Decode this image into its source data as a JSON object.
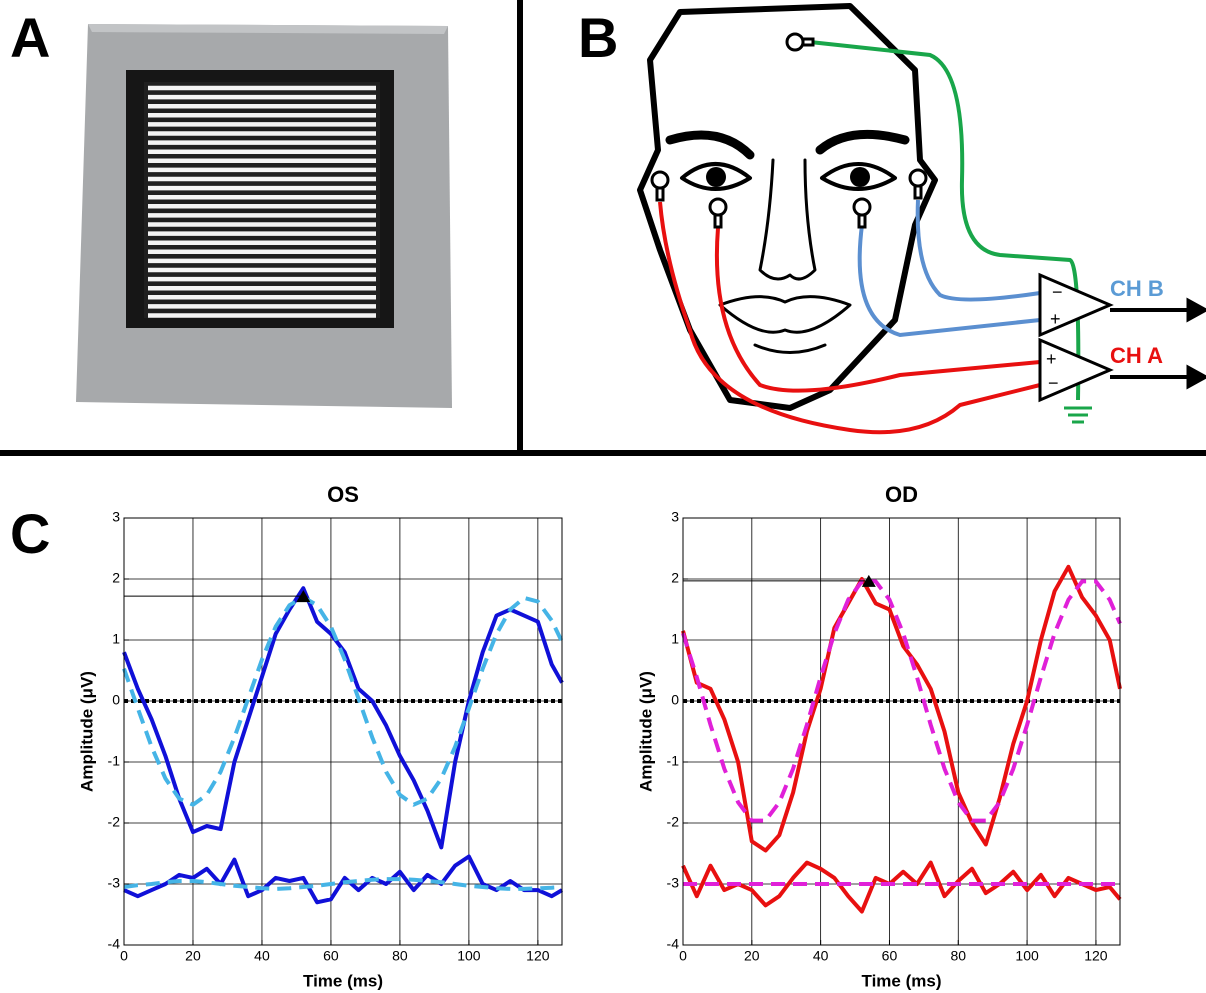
{
  "panels": {
    "a": "A",
    "b": "B",
    "c": "C"
  },
  "diagram": {
    "channel_b": "CH B",
    "channel_a": "CH A"
  },
  "chart_data": [
    {
      "type": "line",
      "title": "OS",
      "xlabel": "Time (ms)",
      "ylabel": "Amplitude (μV)",
      "x": [
        0,
        4,
        8,
        12,
        16,
        20,
        24,
        28,
        32,
        36,
        40,
        44,
        48,
        52,
        56,
        60,
        64,
        68,
        72,
        76,
        80,
        84,
        88,
        92,
        96,
        100,
        104,
        108,
        112,
        116,
        120,
        124,
        127
      ],
      "series": [
        {
          "color": "#000000",
          "dash": "dotted",
          "values": [
            0,
            0,
            0,
            0,
            0,
            0,
            0,
            0,
            0,
            0,
            0,
            0,
            0,
            0,
            0,
            0,
            0,
            0,
            0,
            0,
            0,
            0,
            0,
            0,
            0,
            0,
            0,
            0,
            0,
            0,
            0,
            0,
            0
          ]
        },
        {
          "color": "#1010d8",
          "dash": "solid",
          "values": [
            0.8,
            0.2,
            -0.3,
            -0.9,
            -1.6,
            -2.15,
            -2.05,
            -2.1,
            -1.0,
            -0.3,
            0.4,
            1.1,
            1.5,
            1.85,
            1.3,
            1.1,
            0.8,
            0.2,
            0,
            -0.4,
            -0.9,
            -1.3,
            -1.8,
            -2.4,
            -1.0,
            0.0,
            0.8,
            1.4,
            1.5,
            1.4,
            1.3,
            0.6,
            0.3
          ]
        },
        {
          "color": "#45b4e6",
          "dash": "dashed",
          "values": [
            0.53,
            -0.12,
            -0.75,
            -1.27,
            -1.6,
            -1.7,
            -1.54,
            -1.16,
            -0.6,
            0.04,
            0.68,
            1.22,
            1.57,
            1.7,
            1.57,
            1.22,
            0.68,
            0.04,
            -0.6,
            -1.16,
            -1.54,
            -1.7,
            -1.6,
            -1.27,
            -0.75,
            -0.12,
            0.53,
            1.1,
            1.5,
            1.69,
            1.63,
            1.32,
            0.97
          ]
        },
        {
          "color": "#1010d8",
          "dash": "solid",
          "values": [
            -3.1,
            -3.2,
            -3.1,
            -3.0,
            -2.85,
            -2.9,
            -2.75,
            -3.0,
            -2.6,
            -3.2,
            -3.1,
            -2.9,
            -2.95,
            -2.9,
            -3.3,
            -3.25,
            -2.9,
            -3.1,
            -2.9,
            -3.0,
            -2.8,
            -3.1,
            -2.85,
            -3.0,
            -2.7,
            -2.55,
            -3.0,
            -3.1,
            -2.95,
            -3.1,
            -3.1,
            -3.2,
            -3.1
          ]
        },
        {
          "color": "#45b4e6",
          "dash": "dashed",
          "values": [
            -3.05,
            -3.02,
            -3.0,
            -2.97,
            -2.95,
            -2.95,
            -2.97,
            -3.0,
            -3.03,
            -3.05,
            -3.07,
            -3.08,
            -3.07,
            -3.05,
            -3.03,
            -3.0,
            -2.97,
            -2.95,
            -2.93,
            -2.92,
            -2.92,
            -2.93,
            -2.95,
            -2.97,
            -3.0,
            -3.03,
            -3.05,
            -3.07,
            -3.08,
            -3.08,
            -3.07,
            -3.06,
            -3.05
          ]
        }
      ],
      "peak": {
        "x": 52,
        "y": 1.72
      },
      "xlim": [
        0,
        127
      ],
      "ylim": [
        -4,
        3
      ],
      "xticks": [
        0,
        20,
        40,
        60,
        80,
        100,
        120
      ],
      "yticks": [
        -4,
        -3,
        -2,
        -1,
        0,
        1,
        2,
        3
      ],
      "grid": true
    },
    {
      "type": "line",
      "title": "OD",
      "xlabel": "Time (ms)",
      "ylabel": "Amplitude (μV)",
      "x": [
        0,
        4,
        8,
        12,
        16,
        20,
        24,
        28,
        32,
        36,
        40,
        44,
        48,
        52,
        56,
        60,
        64,
        68,
        72,
        76,
        80,
        84,
        88,
        92,
        96,
        100,
        104,
        108,
        112,
        116,
        120,
        124,
        127
      ],
      "series": [
        {
          "color": "#000000",
          "dash": "dotted",
          "values": [
            0,
            0,
            0,
            0,
            0,
            0,
            0,
            0,
            0,
            0,
            0,
            0,
            0,
            0,
            0,
            0,
            0,
            0,
            0,
            0,
            0,
            0,
            0,
            0,
            0,
            0,
            0,
            0,
            0,
            0,
            0,
            0,
            0
          ]
        },
        {
          "color": "#e81010",
          "dash": "solid",
          "values": [
            1.15,
            0.3,
            0.2,
            -0.3,
            -1.0,
            -2.3,
            -2.45,
            -2.2,
            -1.5,
            -0.5,
            0.2,
            1.2,
            1.6,
            2.0,
            1.6,
            1.5,
            0.9,
            0.6,
            0.2,
            -0.5,
            -1.5,
            -2.0,
            -2.35,
            -1.6,
            -0.7,
            0.0,
            1.0,
            1.8,
            2.2,
            1.7,
            1.4,
            1.0,
            0.2
          ]
        },
        {
          "color": "#e020d8",
          "dash": "dashed",
          "values": [
            1.11,
            0.39,
            -0.39,
            -1.11,
            -1.66,
            -1.96,
            -1.96,
            -1.66,
            -1.11,
            -0.39,
            0.39,
            1.11,
            1.66,
            1.96,
            1.96,
            1.66,
            1.11,
            0.39,
            -0.39,
            -1.11,
            -1.66,
            -1.96,
            -1.96,
            -1.66,
            -1.11,
            -0.39,
            0.39,
            1.11,
            1.66,
            1.96,
            1.96,
            1.66,
            1.27
          ]
        },
        {
          "color": "#e81010",
          "dash": "solid",
          "values": [
            -2.7,
            -3.2,
            -2.7,
            -3.1,
            -3.0,
            -3.1,
            -3.35,
            -3.2,
            -2.9,
            -2.65,
            -2.75,
            -2.9,
            -3.2,
            -3.45,
            -2.9,
            -3.0,
            -2.8,
            -3.0,
            -2.65,
            -3.2,
            -2.95,
            -2.75,
            -3.15,
            -3.0,
            -2.8,
            -3.1,
            -2.85,
            -3.2,
            -2.9,
            -3.0,
            -3.1,
            -3.05,
            -3.25
          ]
        },
        {
          "color": "#e020d8",
          "dash": "dashed",
          "values": [
            -3.0,
            -3.0,
            -3.0,
            -3.0,
            -3.0,
            -3.0,
            -3.0,
            -3.0,
            -3.0,
            -3.0,
            -3.0,
            -3.0,
            -3.0,
            -3.0,
            -3.0,
            -3.0,
            -3.0,
            -3.0,
            -3.0,
            -3.0,
            -3.0,
            -3.0,
            -3.0,
            -3.0,
            -3.0,
            -3.0,
            -3.0,
            -3.0,
            -3.0,
            -3.0,
            -3.0,
            -3.0,
            -3.0
          ]
        }
      ],
      "peak": {
        "x": 54,
        "y": 1.97
      },
      "xlim": [
        0,
        127
      ],
      "ylim": [
        -4,
        3
      ],
      "xticks": [
        0,
        20,
        40,
        60,
        80,
        100,
        120
      ],
      "yticks": [
        -4,
        -3,
        -2,
        -1,
        0,
        1,
        2,
        3
      ],
      "grid": true
    }
  ]
}
